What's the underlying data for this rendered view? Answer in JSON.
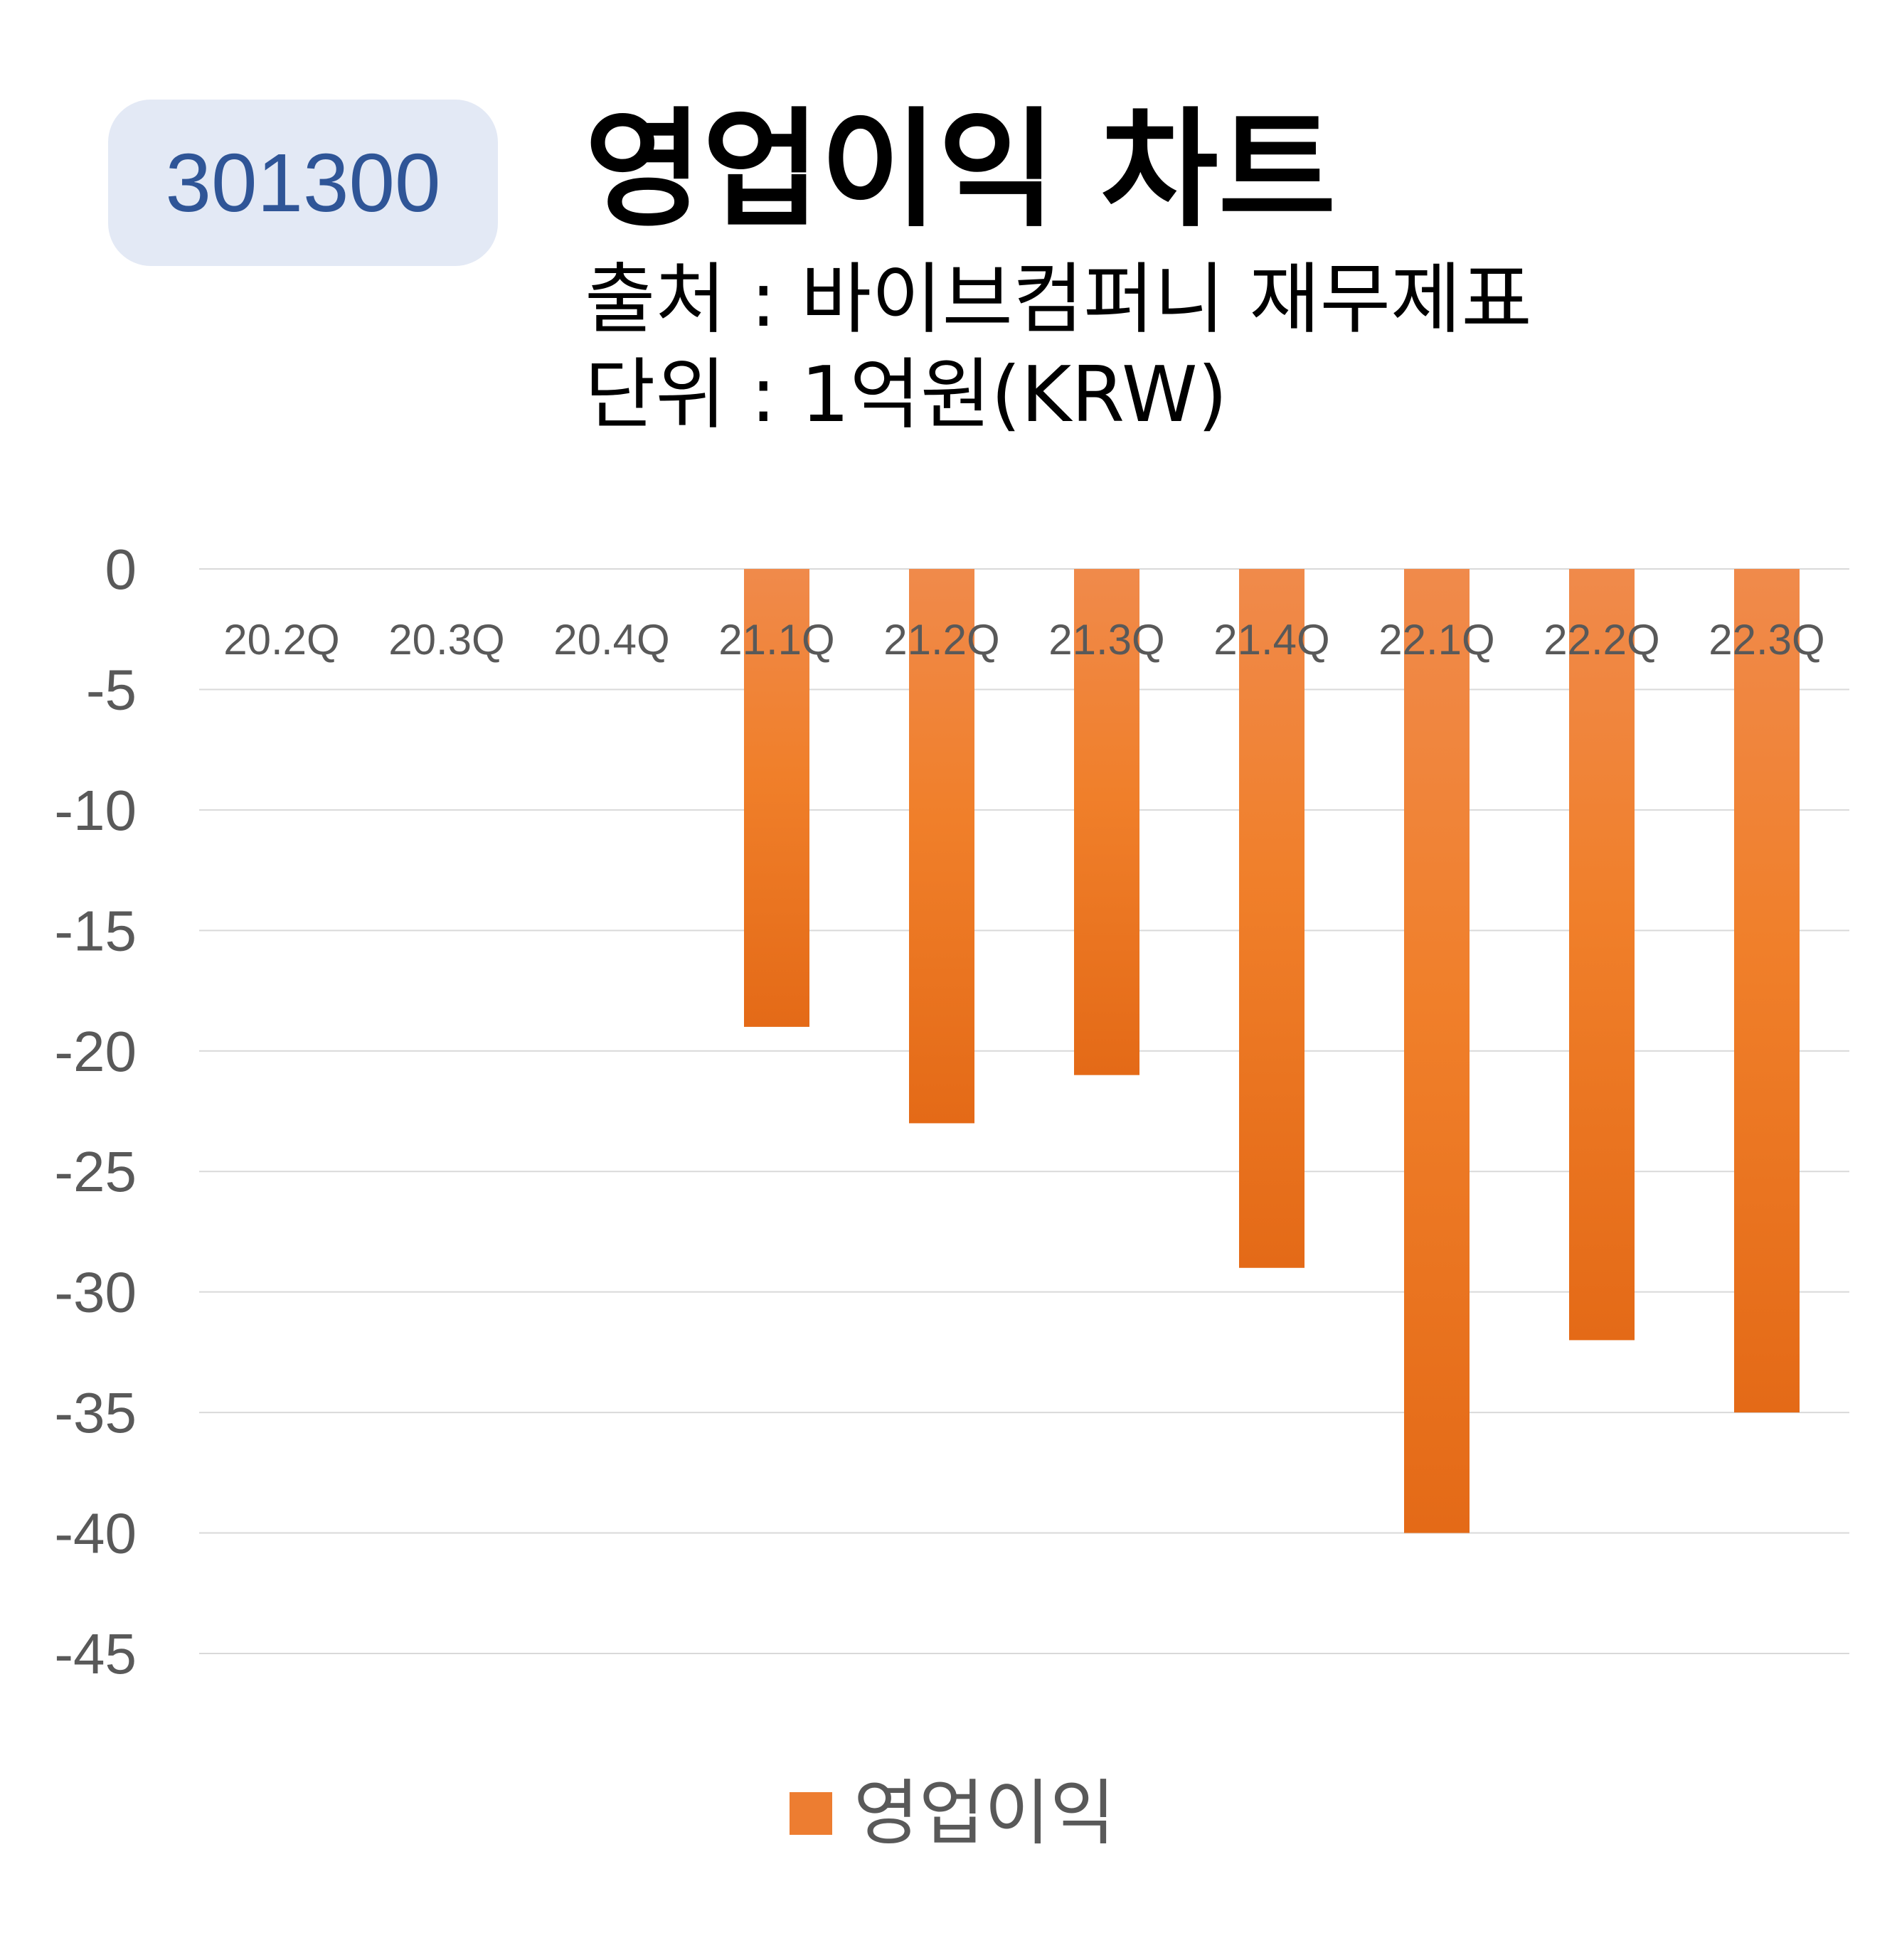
{
  "badge": {
    "code": "301300"
  },
  "header": {
    "title": "영업이익 차트",
    "source_line": "출처 : 바이브컴퍼니 재무제표",
    "unit_line": "단위 : 1억원(KRW)"
  },
  "colors": {
    "bar_top": "#f08a4b",
    "bar_mid": "#f07f2a",
    "bar_bottom": "#e46a17",
    "badge_bg": "#e3e9f5",
    "badge_text": "#2f5597",
    "axis_text": "#595959",
    "grid": "#d9d9d9"
  },
  "chart_data": {
    "type": "bar",
    "categories": [
      "20.2Q",
      "20.3Q",
      "20.4Q",
      "21.1Q",
      "21.2Q",
      "21.3Q",
      "21.4Q",
      "22.1Q",
      "22.2Q",
      "22.3Q"
    ],
    "series": [
      {
        "name": "영업이익",
        "values": [
          0,
          0,
          0,
          -19,
          -23,
          -21,
          -29,
          -40,
          -32,
          -35
        ]
      }
    ],
    "ylim": [
      -45,
      0
    ],
    "yticks": [
      0,
      -5,
      -10,
      -15,
      -20,
      -25,
      -30,
      -35,
      -40,
      -45
    ],
    "grid": true,
    "legend": "bottom"
  }
}
